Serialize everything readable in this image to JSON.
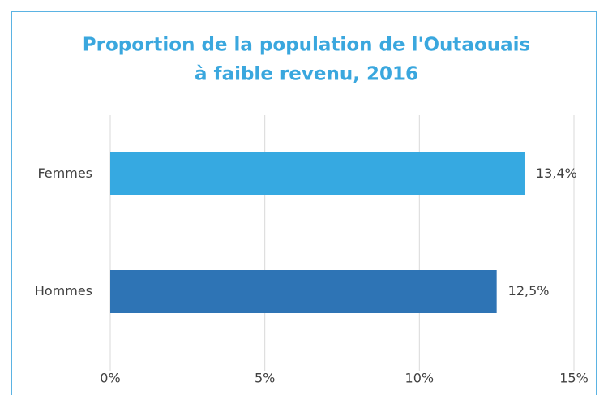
{
  "chart_data": {
    "type": "bar",
    "orientation": "horizontal",
    "title": [
      "Proportion de la population de l'Outaouais",
      "à faible revenu, 2016"
    ],
    "categories": [
      "Femmes",
      "Hommes"
    ],
    "values": [
      13.4,
      12.5
    ],
    "value_labels": [
      "13,4%",
      "12,5%"
    ],
    "colors": [
      "#36a9e1",
      "#2e74b5"
    ],
    "xlim": [
      0,
      15
    ],
    "xticks": [
      {
        "value": 0,
        "label": "0%"
      },
      {
        "value": 5,
        "label": "5%"
      },
      {
        "value": 10,
        "label": "10%"
      },
      {
        "value": 15,
        "label": "15%"
      }
    ],
    "grid": true
  }
}
